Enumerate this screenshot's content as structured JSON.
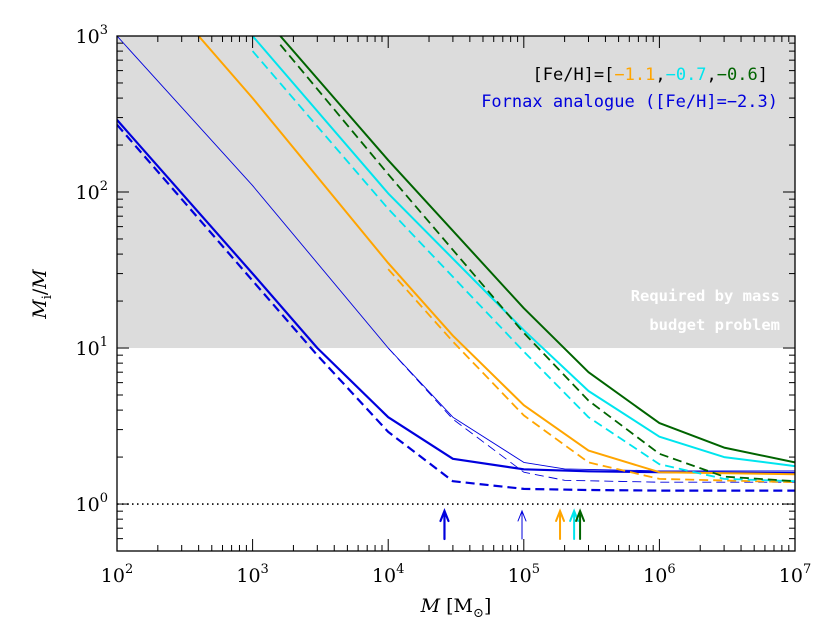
{
  "chart_data": {
    "type": "line",
    "title": "",
    "xlabel": {
      "main": "M",
      "unit_open": "[M",
      "unit_sub": "⊙",
      "unit_close": "]"
    },
    "ylabel": {
      "main": "M",
      "sub": "i",
      "tail": "/M"
    },
    "x_scale": "log",
    "y_scale": "log",
    "xlim": [
      100,
      10000000
    ],
    "ylim": [
      0.5,
      1000
    ],
    "x_ticks": [
      {
        "value": 100,
        "base": "10",
        "exp": "2"
      },
      {
        "value": 1000,
        "base": "10",
        "exp": "3"
      },
      {
        "value": 10000,
        "base": "10",
        "exp": "4"
      },
      {
        "value": 100000,
        "base": "10",
        "exp": "5"
      },
      {
        "value": 1000000,
        "base": "10",
        "exp": "6"
      },
      {
        "value": 10000000,
        "base": "10",
        "exp": "7"
      }
    ],
    "y_ticks": [
      {
        "value": 1,
        "base": "10",
        "exp": "0"
      },
      {
        "value": 10,
        "base": "10",
        "exp": "1"
      },
      {
        "value": 100,
        "base": "10",
        "exp": "2"
      },
      {
        "value": 1000,
        "base": "10",
        "exp": "3"
      }
    ],
    "grid": false,
    "shaded_region": {
      "ymin": 10,
      "ymax": 1000,
      "color": "#dcdcdc",
      "label_line1": "Required by mass",
      "label_line2": "budget problem"
    },
    "reference_line": {
      "y": 1,
      "style": "dotted",
      "color": "#000000"
    },
    "legend": {
      "placement": "top-right",
      "line1_prefix": "[Fe/H]=[",
      "values": [
        {
          "text": "−1.1",
          "color": "#ffa500"
        },
        {
          "text": "−0.7",
          "color": "#00e5ee"
        },
        {
          "text": "−0.6",
          "color": "#006400"
        }
      ],
      "sep": ",",
      "line1_suffix": "]",
      "line2": "Fornax analogue ([Fe/H]=−2.3)",
      "line2_color": "#0000dd"
    },
    "series": [
      {
        "color": "#0000dd",
        "style": "solid",
        "width": 2.2,
        "x": [
          100,
          1000,
          3000,
          10000,
          30000,
          100000,
          300000,
          1000000,
          10000000
        ],
        "y": [
          290,
          30,
          10,
          3.6,
          1.95,
          1.67,
          1.62,
          1.6,
          1.58
        ]
      },
      {
        "color": "#0000dd",
        "style": "dashed",
        "width": 2.2,
        "x": [
          100,
          1000,
          3000,
          10000,
          30000,
          100000,
          300000,
          1000000,
          10000000
        ],
        "y": [
          270,
          27,
          9,
          2.9,
          1.4,
          1.25,
          1.23,
          1.22,
          1.22
        ]
      },
      {
        "color": "#0000dd",
        "style": "solid",
        "width": 0.9,
        "x": [
          100,
          1000,
          10000,
          30000,
          100000,
          200000,
          1000000,
          10000000
        ],
        "y": [
          1000,
          110,
          10,
          3.6,
          1.85,
          1.68,
          1.63,
          1.63
        ]
      },
      {
        "color": "#0000dd",
        "style": "dashed",
        "width": 0.9,
        "x": [
          10000,
          30000,
          100000,
          200000,
          1000000,
          10000000
        ],
        "y": [
          10,
          3.5,
          1.6,
          1.42,
          1.38,
          1.38
        ]
      },
      {
        "color": "#ffa500",
        "style": "solid",
        "width": 2.0,
        "x": [
          400,
          1000,
          10000,
          30000,
          100000,
          300000,
          1000000,
          10000000
        ],
        "y": [
          1000,
          400,
          35,
          12,
          4.3,
          2.2,
          1.6,
          1.55
        ]
      },
      {
        "color": "#ffa500",
        "style": "dashed",
        "width": 1.8,
        "x": [
          10000,
          30000,
          100000,
          300000,
          1000000,
          10000000
        ],
        "y": [
          32,
          11,
          3.7,
          1.85,
          1.45,
          1.38
        ]
      },
      {
        "color": "#00e5ee",
        "style": "solid",
        "width": 2.0,
        "x": [
          1000,
          10000,
          100000,
          300000,
          1000000,
          3000000,
          10000000
        ],
        "y": [
          1000,
          98,
          13,
          5.3,
          2.7,
          2.0,
          1.75
        ]
      },
      {
        "color": "#00e5ee",
        "style": "dashed",
        "width": 1.8,
        "x": [
          1000,
          10000,
          100000,
          300000,
          1000000,
          3000000,
          10000000
        ],
        "y": [
          800,
          78,
          9.5,
          3.6,
          1.8,
          1.45,
          1.4
        ]
      },
      {
        "color": "#006400",
        "style": "solid",
        "width": 2.0,
        "x": [
          1600,
          10000,
          100000,
          300000,
          1000000,
          3000000,
          10000000
        ],
        "y": [
          1000,
          160,
          18,
          7,
          3.3,
          2.3,
          1.85
        ]
      },
      {
        "color": "#006400",
        "style": "dashed",
        "width": 1.8,
        "x": [
          1600,
          10000,
          100000,
          300000,
          1000000,
          3000000,
          10000000
        ],
        "y": [
          880,
          130,
          12.5,
          4.6,
          2.1,
          1.5,
          1.4
        ]
      }
    ],
    "arrows": [
      {
        "x": 26000,
        "color": "#0000dd",
        "width": 2.2
      },
      {
        "x": 97000,
        "color": "#0000dd",
        "width": 1.0
      },
      {
        "x": 185000,
        "color": "#ffa500",
        "width": 2.0
      },
      {
        "x": 235000,
        "color": "#00e5ee",
        "width": 2.0
      },
      {
        "x": 260000,
        "color": "#006400",
        "width": 2.0
      }
    ]
  }
}
